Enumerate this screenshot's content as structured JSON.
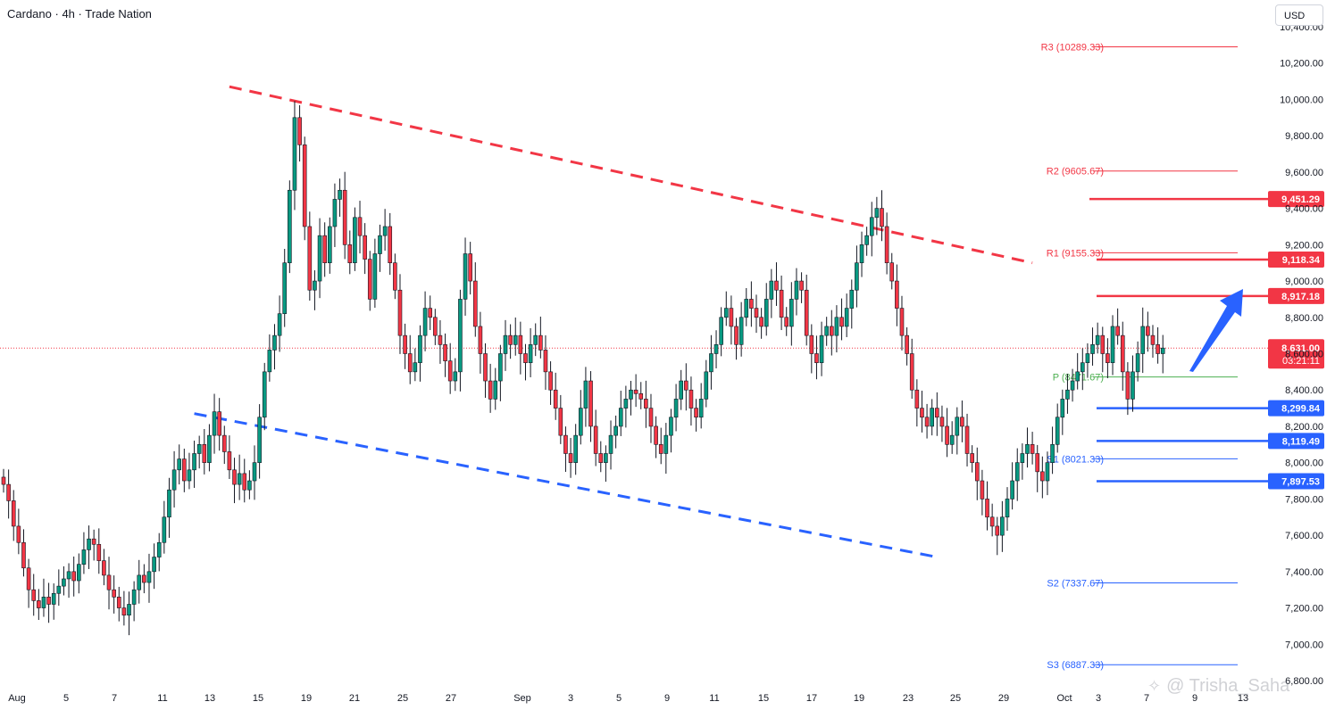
{
  "header": {
    "symbol": "Cardano",
    "interval": "4h",
    "source": "Trade Nation"
  },
  "currency_button": "USD",
  "watermark": "@ Trisha_Saha",
  "chart_data": {
    "type": "candlestick",
    "title": "Cardano · 4h · Trade Nation",
    "ylim": [
      6800,
      10400
    ],
    "yticks": [
      {
        "value": 6800,
        "label": "6,800.00"
      },
      {
        "value": 7000,
        "label": "7,000.00"
      },
      {
        "value": 7200,
        "label": "7,200.00"
      },
      {
        "value": 7400,
        "label": "7,400.00"
      },
      {
        "value": 7600,
        "label": "7,600.00"
      },
      {
        "value": 7800,
        "label": "7,800.00"
      },
      {
        "value": 8000,
        "label": "8,000.00"
      },
      {
        "value": 8200,
        "label": "8,200.00"
      },
      {
        "value": 8400,
        "label": "8,400.00"
      },
      {
        "value": 8600,
        "label": "8,600.00"
      },
      {
        "value": 8800,
        "label": "8,800.00"
      },
      {
        "value": 9000,
        "label": "9,000.00"
      },
      {
        "value": 9200,
        "label": "9,200.00"
      },
      {
        "value": 9400,
        "label": "9,400.00"
      },
      {
        "value": 9600,
        "label": "9,600.00"
      },
      {
        "value": 9800,
        "label": "9,800.00"
      },
      {
        "value": 10000,
        "label": "10,000.00"
      },
      {
        "value": 10200,
        "label": "10,200.00"
      },
      {
        "value": 10400,
        "label": "10,400.00"
      }
    ],
    "xticks": [
      "Aug",
      "5",
      "7",
      "11",
      "13",
      "15",
      "19",
      "21",
      "25",
      "27",
      "Sep",
      "3",
      "5",
      "9",
      "11",
      "15",
      "17",
      "19",
      "23",
      "25",
      "29",
      "Oct",
      "3",
      "7",
      "9",
      "13"
    ],
    "current_price": {
      "value": 8631.0,
      "label": "8,631.00",
      "countdown": "03:21:11",
      "color": "#f23645"
    },
    "pivot_levels": [
      {
        "name": "R3",
        "value": 10289.33,
        "label": "R3 (10289.33)",
        "color": "#f23645"
      },
      {
        "name": "R2",
        "value": 9605.67,
        "label": "R2 (9605.67)",
        "color": "#f23645"
      },
      {
        "name": "R1",
        "value": 9155.33,
        "label": "R1 (9155.33)",
        "color": "#f23645"
      },
      {
        "name": "P",
        "value": 8471.67,
        "label": "P (8471.67)",
        "color": "#4caf50"
      },
      {
        "name": "S1",
        "value": 8021.33,
        "label": "S1 (8021.33)",
        "color": "#2962ff"
      },
      {
        "name": "S2",
        "value": 7337.67,
        "label": "S2 (7337.67)",
        "color": "#2962ff"
      },
      {
        "name": "S3",
        "value": 6887.33,
        "label": "S3 (6887.33)",
        "color": "#2962ff"
      }
    ],
    "resistance_levels": [
      {
        "value": 9451.29,
        "label": "9,451.29",
        "color": "#f23645"
      },
      {
        "value": 9118.34,
        "label": "9,118.34",
        "color": "#f23645"
      },
      {
        "value": 8917.18,
        "label": "8,917.18",
        "color": "#f23645"
      }
    ],
    "support_levels": [
      {
        "value": 8299.84,
        "label": "8,299.84",
        "color": "#2962ff"
      },
      {
        "value": 8119.49,
        "label": "8,119.49",
        "color": "#2962ff"
      },
      {
        "value": 7897.53,
        "label": "7,897.53",
        "color": "#2962ff"
      }
    ],
    "channel": {
      "upper": {
        "from": {
          "bar": 45,
          "price": 10070
        },
        "to": {
          "bar": 205,
          "price": 9100
        },
        "color": "#f23645"
      },
      "lower": {
        "from": {
          "bar": 38,
          "price": 8270
        },
        "to": {
          "bar": 186,
          "price": 7480
        },
        "color": "#2962ff"
      }
    },
    "forecast_arrow": {
      "from": {
        "bar": 222,
        "price": 8510
      },
      "to": {
        "bar": 233,
        "price": 8980
      },
      "color": "#2962ff"
    },
    "colors": {
      "up": "#089981",
      "down": "#f23645",
      "wick": "#131722"
    },
    "closes": [
      7880,
      7790,
      7650,
      7560,
      7420,
      7300,
      7240,
      7200,
      7260,
      7220,
      7280,
      7320,
      7360,
      7400,
      7350,
      7440,
      7520,
      7580,
      7550,
      7460,
      7380,
      7300,
      7260,
      7200,
      7160,
      7220,
      7300,
      7380,
      7340,
      7400,
      7480,
      7560,
      7700,
      7850,
      7960,
      8020,
      7900,
      7960,
      8050,
      8100,
      8000,
      8150,
      8280,
      8150,
      8060,
      7960,
      7880,
      7940,
      7850,
      7900,
      8000,
      8250,
      8500,
      8620,
      8700,
      8820,
      9100,
      9500,
      9900,
      9750,
      9300,
      8950,
      9000,
      9250,
      9100,
      9300,
      9450,
      9500,
      9200,
      9100,
      9350,
      9250,
      9120,
      8900,
      9150,
      9250,
      9300,
      9100,
      8950,
      8700,
      8600,
      8500,
      8550,
      8700,
      8850,
      8800,
      8700,
      8650,
      8560,
      8450,
      8500,
      8900,
      9150,
      9000,
      8750,
      8600,
      8450,
      8350,
      8450,
      8600,
      8700,
      8650,
      8700,
      8600,
      8550,
      8650,
      8700,
      8620,
      8500,
      8400,
      8300,
      8150,
      8050,
      8000,
      8150,
      8300,
      8450,
      8200,
      8050,
      8000,
      8050,
      8150,
      8200,
      8300,
      8350,
      8400,
      8380,
      8350,
      8300,
      8200,
      8100,
      8050,
      8150,
      8250,
      8350,
      8450,
      8400,
      8300,
      8250,
      8350,
      8500,
      8600,
      8650,
      8800,
      8850,
      8750,
      8650,
      8800,
      8900,
      8850,
      8800,
      8750,
      8900,
      9000,
      8950,
      8800,
      8750,
      8900,
      9000,
      8950,
      8700,
      8600,
      8550,
      8700,
      8750,
      8700,
      8800,
      8750,
      8850,
      8950,
      9100,
      9200,
      9250,
      9350,
      9400,
      9300,
      9100,
      9000,
      8850,
      8700,
      8600,
      8400,
      8300,
      8250,
      8200,
      8300,
      8250,
      8200,
      8100,
      8150,
      8250,
      8200,
      8050,
      8000,
      7900,
      7800,
      7700,
      7650,
      7600,
      7700,
      7800,
      7900,
      8000,
      8050,
      8100,
      8050,
      7950,
      7900,
      8000,
      8100,
      8250,
      8350,
      8400,
      8450,
      8500,
      8550,
      8600,
      8650,
      8700,
      8600,
      8550,
      8750,
      8700,
      8500,
      8350,
      8500,
      8600,
      8750,
      8700,
      8650,
      8600,
      8631
    ]
  }
}
